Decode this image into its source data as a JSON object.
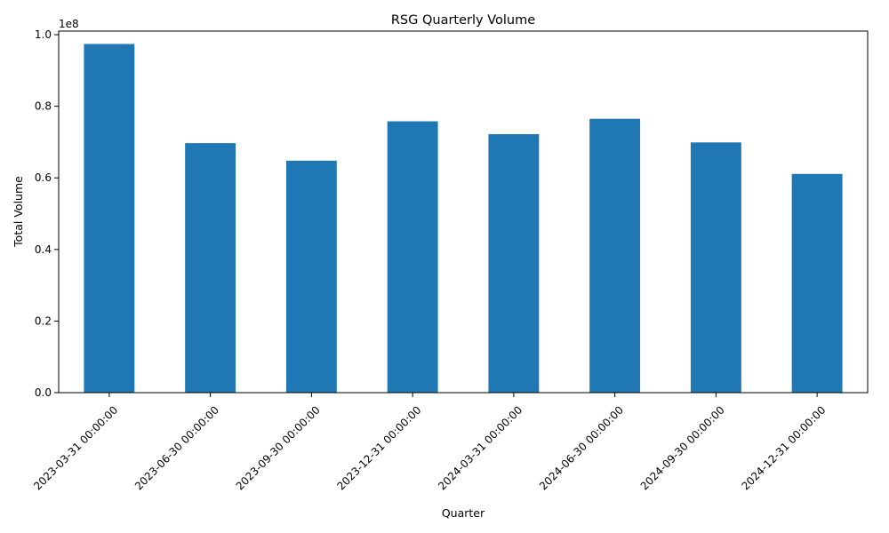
{
  "chart_data": {
    "type": "bar",
    "title": "RSG Quarterly Volume",
    "xlabel": "Quarter",
    "ylabel": "Total Volume",
    "y_offset_label": "1e8",
    "categories": [
      "2023-03-31 00:00:00",
      "2023-06-30 00:00:00",
      "2023-09-30 00:00:00",
      "2023-12-31 00:00:00",
      "2024-03-31 00:00:00",
      "2024-06-30 00:00:00",
      "2024-09-30 00:00:00",
      "2024-12-31 00:00:00"
    ],
    "values": [
      97400000,
      69700000,
      64800000,
      75800000,
      72200000,
      76500000,
      69900000,
      61100000
    ],
    "ylim": [
      0,
      101000000
    ],
    "y_ticks": [
      0,
      20000000,
      40000000,
      60000000,
      80000000,
      100000000
    ],
    "y_tick_labels": [
      "0.0",
      "0.2",
      "0.4",
      "0.6",
      "0.8",
      "1.0"
    ],
    "bar_color": "#1f77b4",
    "grid": false,
    "legend": "none"
  }
}
